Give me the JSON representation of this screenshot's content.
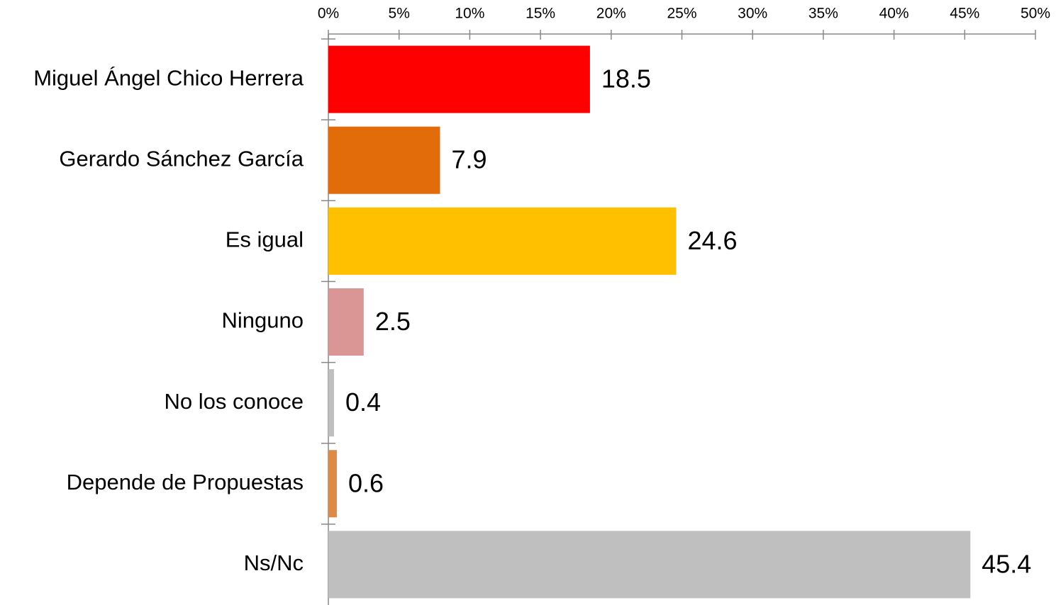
{
  "chart_data": {
    "type": "bar",
    "orientation": "horizontal",
    "categories": [
      "Miguel Ángel Chico Herrera",
      "Gerardo Sánchez García",
      "Es igual",
      "Ninguno",
      "No los conoce",
      "Depende de Propuestas",
      "Ns/Nc"
    ],
    "values": [
      18.5,
      7.9,
      24.6,
      2.5,
      0.4,
      0.6,
      45.4
    ],
    "colors": [
      "#ff0000",
      "#e36c0a",
      "#ffc000",
      "#d99694",
      "#bfbfbf",
      "#dd8a48",
      "#bfbfbf"
    ],
    "xlim": [
      0,
      50
    ],
    "xticks": [
      {
        "value": 0,
        "label": "0%"
      },
      {
        "value": 5,
        "label": "5%"
      },
      {
        "value": 10,
        "label": "10%"
      },
      {
        "value": 15,
        "label": "15%"
      },
      {
        "value": 20,
        "label": "20%"
      },
      {
        "value": 25,
        "label": "25%"
      },
      {
        "value": 30,
        "label": "30%"
      },
      {
        "value": 35,
        "label": "35%"
      },
      {
        "value": 40,
        "label": "40%"
      },
      {
        "value": 45,
        "label": "45%"
      },
      {
        "value": 50,
        "label": "50%"
      }
    ],
    "grid": false
  }
}
